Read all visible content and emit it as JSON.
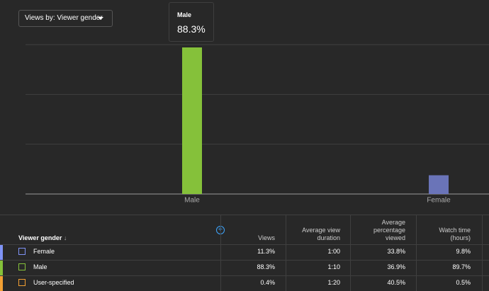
{
  "dropdown": {
    "label": "Views by: Viewer gender"
  },
  "tooltip": {
    "title": "Male",
    "value": "88.3%"
  },
  "chart_data": {
    "type": "bar",
    "categories": [
      "Male",
      "Female"
    ],
    "values": [
      88.3,
      11.3
    ],
    "colors": [
      "#85c13a",
      "#6a74b8"
    ],
    "ylim": [
      0,
      90
    ],
    "yticks": [
      0,
      30,
      60,
      90
    ],
    "grid": true
  },
  "table": {
    "headers": [
      "Viewer gender",
      "Views",
      "Average view duration",
      "Average percentage viewed",
      "Watch time (hours)"
    ],
    "row_colors": [
      "#7f93f5",
      "#85c13a",
      "#f2a033"
    ],
    "rows": [
      [
        "Female",
        "11.3%",
        "1:00",
        "33.8%",
        "9.8%"
      ],
      [
        "Male",
        "88.3%",
        "1:10",
        "36.9%",
        "89.7%"
      ],
      [
        "User-specified",
        "0.4%",
        "1:20",
        "40.5%",
        "0.5%"
      ]
    ]
  }
}
